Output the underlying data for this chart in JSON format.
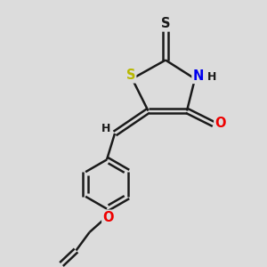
{
  "background_color": "#dcdcdc",
  "line_color": "#1a1a1a",
  "bond_lw": 1.8,
  "atom_colors": {
    "S_ring": "#b8b800",
    "S_thione": "#1a1a1a",
    "N": "#0000ee",
    "O": "#ee0000",
    "C": "#1a1a1a",
    "H": "#1a1a1a"
  },
  "S_ring_label_color": "#b8b800",
  "N_label_color": "#0000ee",
  "O_label_color": "#ee0000",
  "font_size": 10.5
}
